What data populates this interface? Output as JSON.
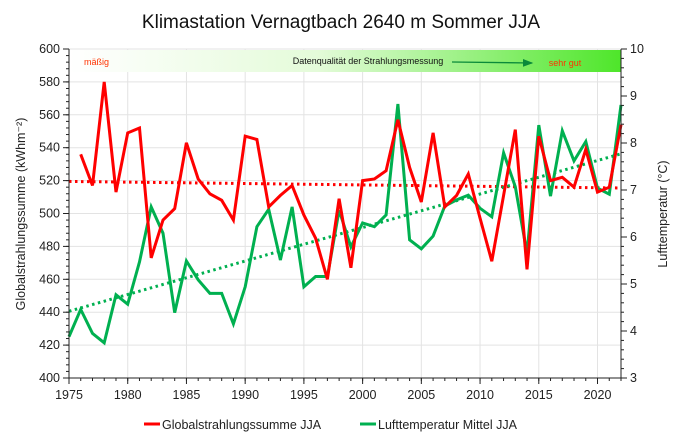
{
  "chart_data": {
    "type": "line",
    "title": "Klimastation Vernagtbach 2640 m Sommer JJA",
    "xlabel": "",
    "ylabel": "Globalstrahlungssumme (kWhm⁻²)",
    "y2label": "Lufttemperatur (°C)",
    "xlim": [
      1975,
      2022
    ],
    "ylim": [
      400,
      600
    ],
    "y2lim": [
      3,
      10
    ],
    "grid": true,
    "legend_position": "bottom",
    "x_ticks": [
      1975,
      1980,
      1985,
      1990,
      1995,
      2000,
      2005,
      2010,
      2015,
      2020
    ],
    "y_ticks": [
      400,
      420,
      440,
      460,
      480,
      500,
      520,
      540,
      560,
      580,
      600
    ],
    "y2_ticks": [
      3,
      4,
      5,
      6,
      7,
      8,
      9,
      10
    ],
    "quality_band": {
      "label": "Datenqualität der Strahlungsmessung",
      "left_label": "mäßig",
      "right_label": "sehr gut",
      "left_color": "#ff3300",
      "right_color": "#ff3300"
    },
    "series": [
      {
        "name": "Globalstrahlungssumme JJA",
        "axis": "left",
        "color": "#ff0000",
        "x": [
          1976,
          1977,
          1978,
          1979,
          1980,
          1981,
          1982,
          1983,
          1984,
          1985,
          1986,
          1987,
          1988,
          1989,
          1990,
          1991,
          1992,
          1993,
          1994,
          1995,
          1996,
          1997,
          1998,
          1999,
          2000,
          2001,
          2002,
          2003,
          2004,
          2005,
          2006,
          2007,
          2008,
          2009,
          2010,
          2011,
          2012,
          2013,
          2014,
          2015,
          2016,
          2017,
          2018,
          2019,
          2020,
          2021,
          2022
        ],
        "values": [
          536,
          517,
          580,
          513,
          549,
          552,
          473,
          496,
          503,
          543,
          521,
          512,
          508,
          496,
          547,
          545,
          504,
          511,
          517,
          499,
          485,
          460,
          509,
          467,
          520,
          521,
          526,
          557,
          528,
          507,
          549,
          504,
          511,
          524,
          497,
          471,
          511,
          551,
          466,
          547,
          520,
          522,
          516,
          539,
          513,
          516,
          554
        ],
        "trend": {
          "x": [
            1975,
            2022
          ],
          "values": [
            519.5,
            515.5
          ]
        }
      },
      {
        "name": "Lufttemperatur Mittel JJA",
        "axis": "right",
        "color": "#00b050",
        "x": [
          1975,
          1976,
          1977,
          1978,
          1979,
          1980,
          1981,
          1982,
          1983,
          1984,
          1985,
          1986,
          1987,
          1988,
          1989,
          1990,
          1991,
          1992,
          1993,
          1994,
          1995,
          1996,
          1997,
          1998,
          1999,
          2000,
          2001,
          2002,
          2003,
          2004,
          2005,
          2006,
          2007,
          2008,
          2009,
          2010,
          2011,
          2012,
          2013,
          2014,
          2015,
          2016,
          2017,
          2018,
          2019,
          2020,
          2021,
          2022
        ],
        "values": [
          3.88,
          4.46,
          3.95,
          3.75,
          4.77,
          4.57,
          5.47,
          6.64,
          6.08,
          4.39,
          5.49,
          5.09,
          4.8,
          4.8,
          4.15,
          4.94,
          6.22,
          6.59,
          5.51,
          6.64,
          4.94,
          5.16,
          5.16,
          6.57,
          5.79,
          6.3,
          6.22,
          6.47,
          8.83,
          5.94,
          5.75,
          6.02,
          6.66,
          6.79,
          6.89,
          6.61,
          6.43,
          7.79,
          7.07,
          5.65,
          8.38,
          6.87,
          8.26,
          7.62,
          8.03,
          7.04,
          6.91,
          8.81
        ],
        "trend": {
          "x": [
            1975,
            2022
          ],
          "values": [
            4.42,
            7.77
          ]
        }
      }
    ]
  }
}
